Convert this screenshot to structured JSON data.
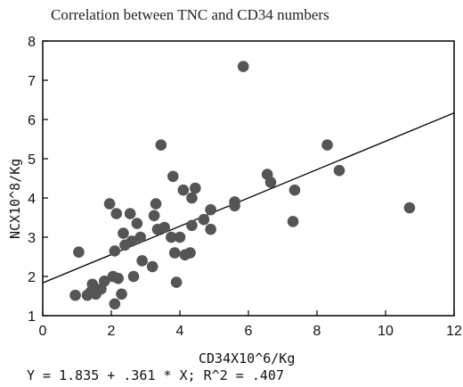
{
  "chart_data": {
    "type": "scatter",
    "title": "Correlation between TNC and CD34 numbers",
    "xlabel": "CD34X10^6/Kg",
    "ylabel": "NCX10^8/Kg",
    "xlim": [
      0,
      12
    ],
    "ylim": [
      1,
      8
    ],
    "xticks": [
      0,
      2,
      4,
      6,
      8,
      10,
      12
    ],
    "yticks": [
      1,
      2,
      3,
      4,
      5,
      6,
      7,
      8
    ],
    "grid": false,
    "point_color": "#555555",
    "fit_line": {
      "intercept": 1.835,
      "slope": 0.361,
      "x_range": [
        0,
        12
      ]
    },
    "equation": "Y = 1.835 + .361 * X; R^2 = .407",
    "points": [
      {
        "x": 0.95,
        "y": 1.52
      },
      {
        "x": 1.05,
        "y": 2.62
      },
      {
        "x": 1.3,
        "y": 1.52
      },
      {
        "x": 1.4,
        "y": 1.6
      },
      {
        "x": 1.45,
        "y": 1.8
      },
      {
        "x": 1.55,
        "y": 1.55
      },
      {
        "x": 1.7,
        "y": 1.68
      },
      {
        "x": 1.8,
        "y": 1.88
      },
      {
        "x": 1.95,
        "y": 3.85
      },
      {
        "x": 2.05,
        "y": 2.0
      },
      {
        "x": 2.1,
        "y": 1.3
      },
      {
        "x": 2.1,
        "y": 2.65
      },
      {
        "x": 2.15,
        "y": 3.6
      },
      {
        "x": 2.2,
        "y": 1.95
      },
      {
        "x": 2.3,
        "y": 1.55
      },
      {
        "x": 2.35,
        "y": 3.1
      },
      {
        "x": 2.4,
        "y": 2.8
      },
      {
        "x": 2.55,
        "y": 3.6
      },
      {
        "x": 2.6,
        "y": 2.9
      },
      {
        "x": 2.65,
        "y": 2.0
      },
      {
        "x": 2.75,
        "y": 3.35
      },
      {
        "x": 2.85,
        "y": 3.0
      },
      {
        "x": 2.9,
        "y": 2.4
      },
      {
        "x": 3.2,
        "y": 2.25
      },
      {
        "x": 3.25,
        "y": 3.55
      },
      {
        "x": 3.3,
        "y": 3.85
      },
      {
        "x": 3.35,
        "y": 3.2
      },
      {
        "x": 3.45,
        "y": 5.35
      },
      {
        "x": 3.55,
        "y": 3.25
      },
      {
        "x": 3.75,
        "y": 3.0
      },
      {
        "x": 3.8,
        "y": 4.55
      },
      {
        "x": 3.85,
        "y": 2.6
      },
      {
        "x": 3.9,
        "y": 1.85
      },
      {
        "x": 4.0,
        "y": 3.0
      },
      {
        "x": 4.1,
        "y": 4.2
      },
      {
        "x": 4.15,
        "y": 2.55
      },
      {
        "x": 4.3,
        "y": 2.6
      },
      {
        "x": 4.35,
        "y": 3.3
      },
      {
        "x": 4.35,
        "y": 4.0
      },
      {
        "x": 4.45,
        "y": 4.25
      },
      {
        "x": 4.7,
        "y": 3.45
      },
      {
        "x": 4.9,
        "y": 3.7
      },
      {
        "x": 4.9,
        "y": 3.2
      },
      {
        "x": 5.6,
        "y": 3.9
      },
      {
        "x": 5.6,
        "y": 3.8
      },
      {
        "x": 5.85,
        "y": 7.35
      },
      {
        "x": 6.55,
        "y": 4.6
      },
      {
        "x": 6.65,
        "y": 4.4
      },
      {
        "x": 7.3,
        "y": 3.4
      },
      {
        "x": 7.35,
        "y": 4.2
      },
      {
        "x": 8.3,
        "y": 5.35
      },
      {
        "x": 8.65,
        "y": 4.7
      },
      {
        "x": 10.7,
        "y": 3.75
      }
    ]
  }
}
